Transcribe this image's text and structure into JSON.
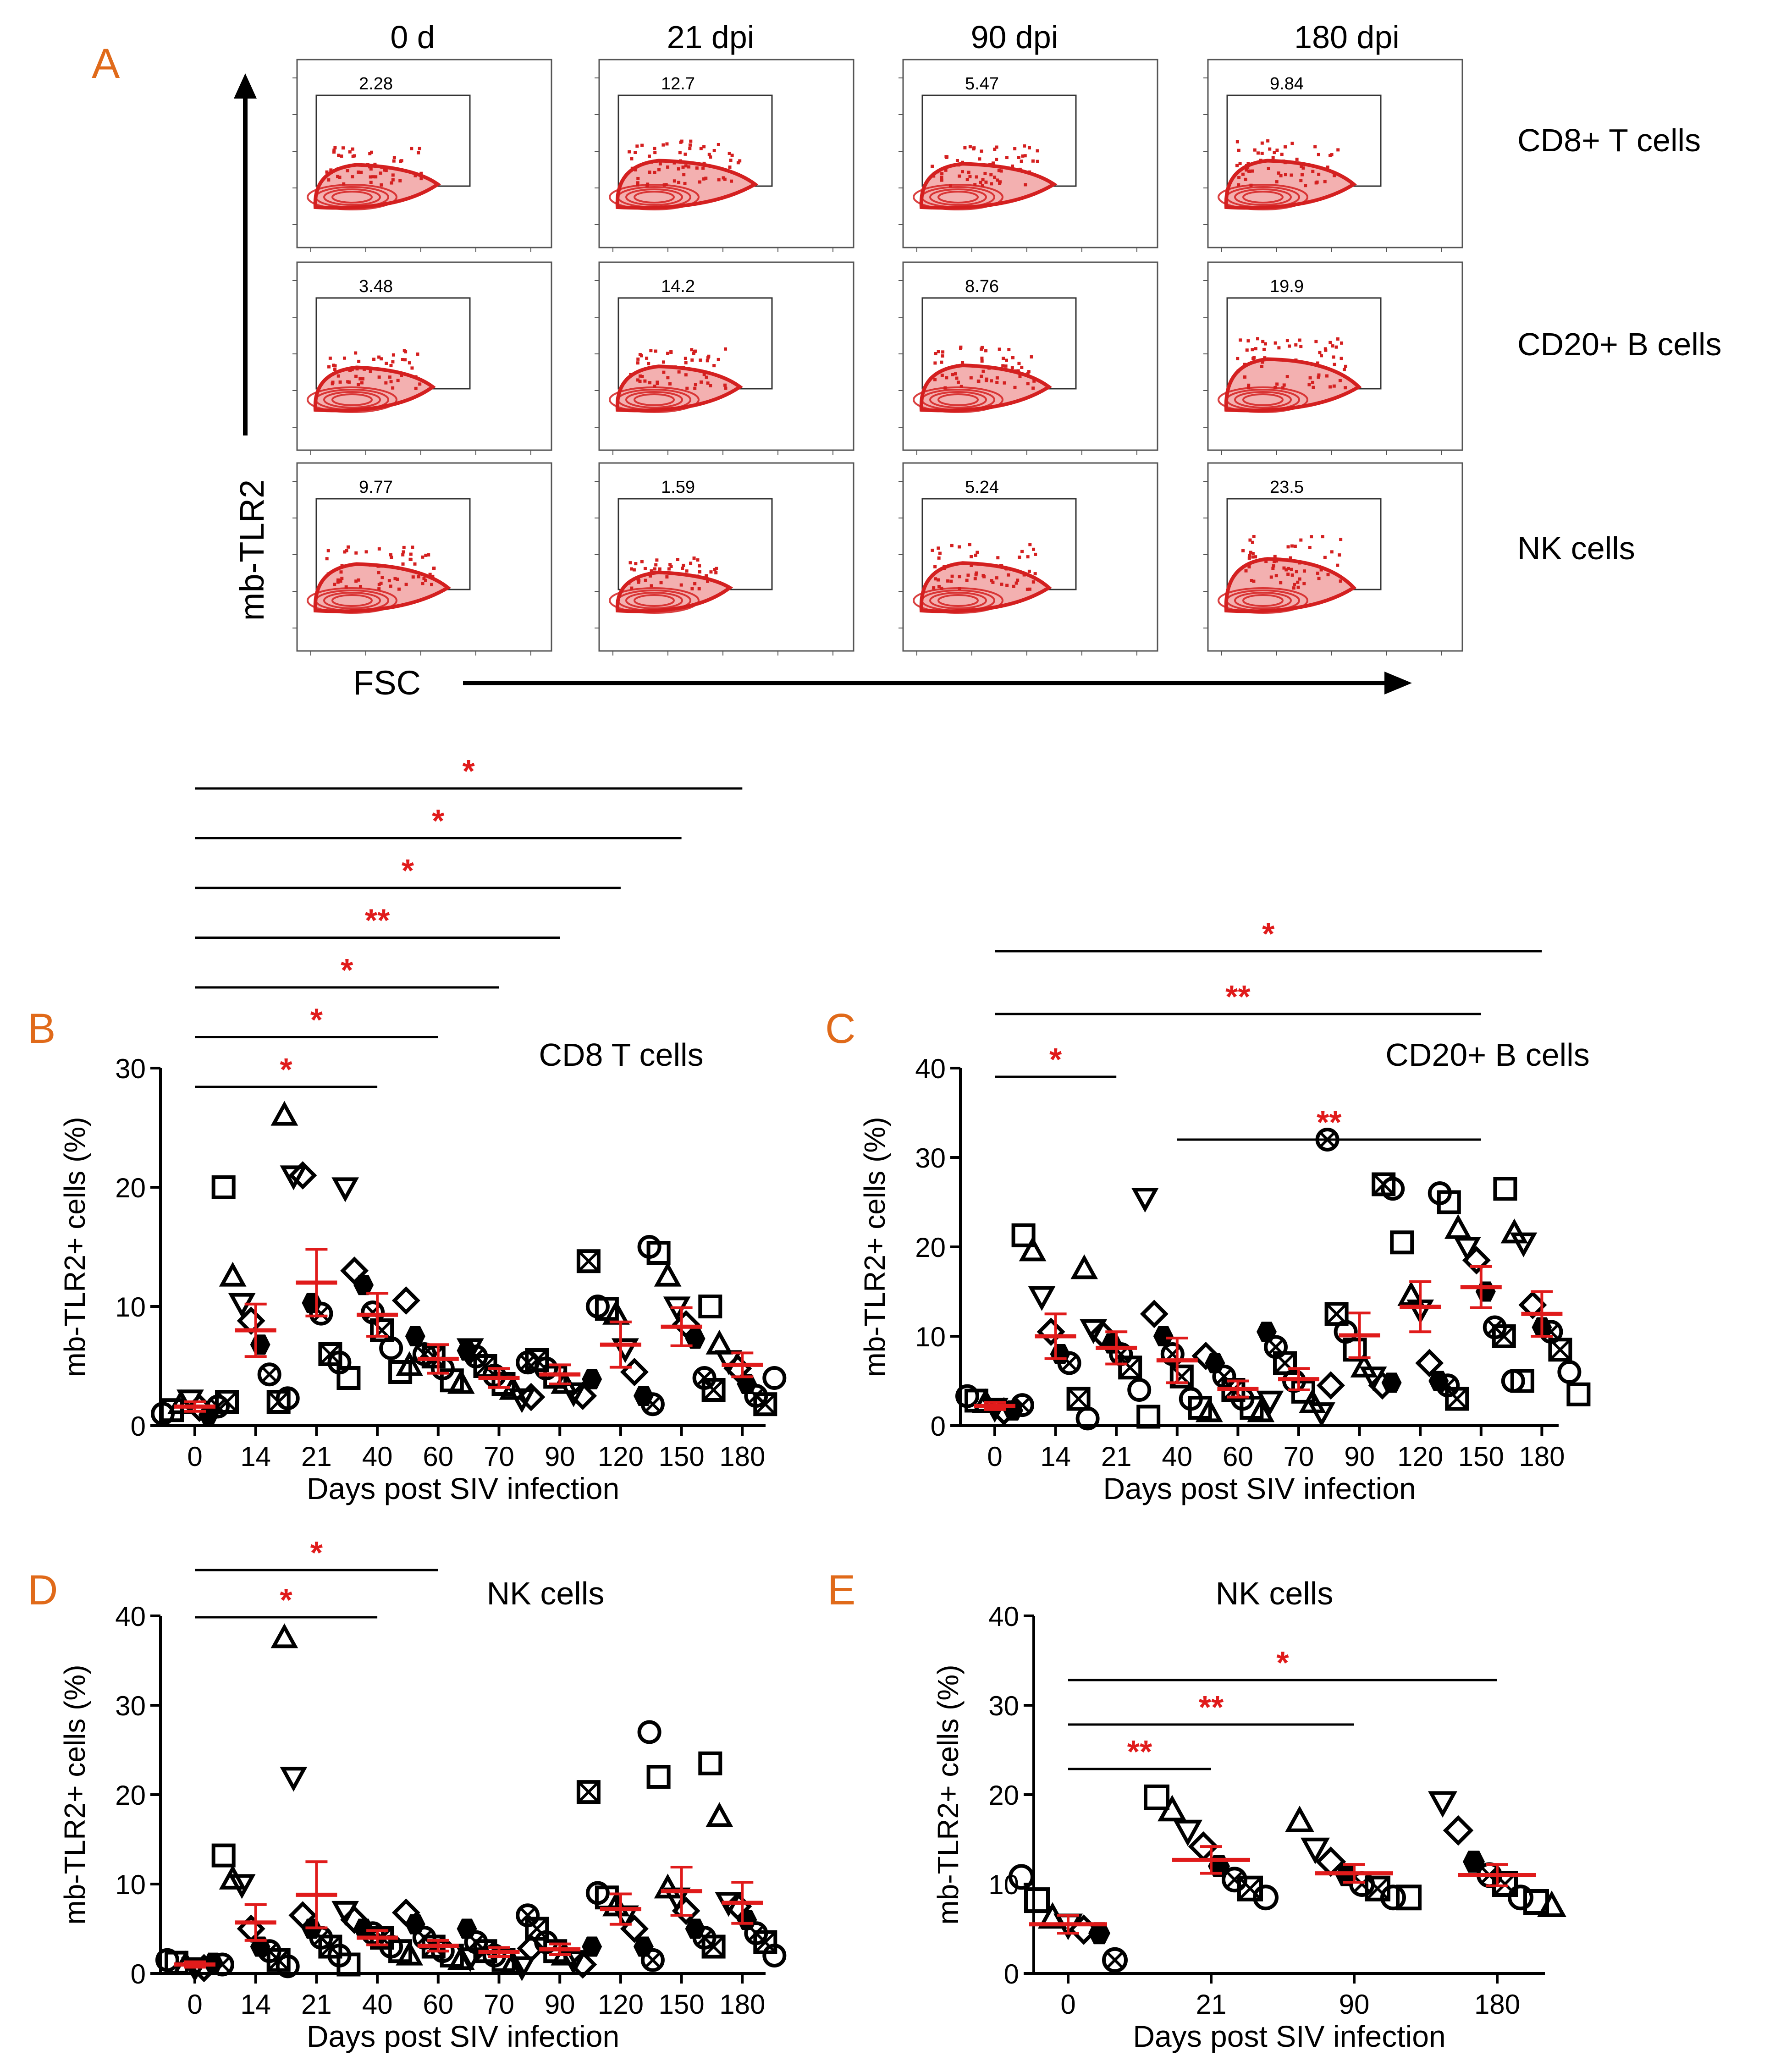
{
  "figure": {
    "colors": {
      "accent": "#e01b1b",
      "panel_letter": "#e06a1a",
      "ink": "#000000",
      "flow": "#d42020"
    }
  },
  "panel_a": {
    "letter": "A",
    "y_axis_label": "mb-TLR2",
    "x_axis_label": "FSC",
    "columns": [
      "0 d",
      "21 dpi",
      "90 dpi",
      "180 dpi"
    ],
    "rows": [
      "CD8+ T cells",
      "CD20+ B cells",
      "NK cells"
    ],
    "gate_values": [
      [
        "2.28",
        "12.7",
        "5.47",
        "9.84"
      ],
      [
        "3.48",
        "14.2",
        "8.76",
        "19.9"
      ],
      [
        "9.77",
        "1.59",
        "5.24",
        "23.5"
      ]
    ]
  },
  "chart_data": [
    {
      "panel": "B",
      "type": "scatter",
      "title": "CD8 T cells",
      "xlabel": "Days post SIV infection",
      "ylabel": "mb-TLR2+ cells (%)",
      "categories": [
        "0",
        "14",
        "21",
        "40",
        "60",
        "70",
        "90",
        "120",
        "150",
        "180"
      ],
      "ylim": [
        0,
        30
      ],
      "yticks": [
        "0",
        "10",
        "20",
        "30"
      ],
      "means": [
        1.6,
        8.0,
        12.0,
        9.3,
        5.6,
        4.0,
        4.3,
        6.8,
        8.3,
        5.1
      ],
      "sem": [
        0.4,
        2.2,
        2.8,
        1.8,
        1.2,
        0.8,
        0.8,
        1.9,
        1.6,
        1.0
      ],
      "points": [
        [
          1.0,
          1.3,
          1.8,
          2.2,
          1.5,
          0.9,
          1.6,
          2.0
        ],
        [
          20.0,
          12.5,
          10.3,
          8.8,
          6.8,
          4.3,
          2.0,
          2.3
        ],
        [
          26.0,
          21.0,
          21.0,
          10.3,
          9.4,
          6.0,
          5.3,
          4.0
        ],
        [
          20.0,
          13.0,
          11.8,
          9.5,
          8.0,
          6.5,
          4.5,
          5.0
        ],
        [
          10.5,
          7.5,
          6.0,
          5.8,
          4.8,
          3.8,
          3.5,
          6.5
        ],
        [
          6.3,
          5.8,
          5.0,
          4.2,
          3.5,
          3.0,
          2.3,
          2.4
        ],
        [
          5.3,
          5.5,
          4.8,
          4.1,
          3.5,
          2.8,
          2.5,
          3.9
        ],
        [
          13.8,
          10.0,
          9.8,
          9.3,
          6.5,
          4.5,
          2.5,
          1.8
        ],
        [
          15.0,
          14.5,
          12.5,
          10.0,
          8.5,
          7.3,
          4.0,
          3.0
        ],
        [
          10.0,
          6.8,
          5.5,
          4.8,
          3.5,
          2.5,
          1.8,
          4.0
        ]
      ],
      "significance": [
        {
          "from": "0",
          "to": "180",
          "label": "*"
        },
        {
          "from": "0",
          "to": "150",
          "label": "*"
        },
        {
          "from": "0",
          "to": "120",
          "label": "*"
        },
        {
          "from": "0",
          "to": "90",
          "label": "**"
        },
        {
          "from": "0",
          "to": "70",
          "label": "*"
        },
        {
          "from": "0",
          "to": "60",
          "label": "*"
        },
        {
          "from": "0",
          "to": "40",
          "label": "*"
        }
      ]
    },
    {
      "panel": "C",
      "type": "scatter",
      "title": "CD20+ B cells",
      "xlabel": "Days post SIV infection",
      "ylabel": "mb-TLR2+ cells (%)",
      "categories": [
        "0",
        "14",
        "21",
        "40",
        "60",
        "70",
        "90",
        "120",
        "150",
        "180"
      ],
      "ylim": [
        0,
        40
      ],
      "yticks": [
        "0",
        "10",
        "20",
        "30",
        "40"
      ],
      "means": [
        2.2,
        10.0,
        8.7,
        7.3,
        4.1,
        5.2,
        10.1,
        13.3,
        15.5,
        12.5
      ],
      "sem": [
        0.4,
        2.5,
        1.8,
        2.5,
        0.9,
        1.2,
        2.5,
        2.8,
        2.3,
        2.5
      ],
      "points": [
        [
          3.3,
          2.8,
          2.5,
          2.0,
          1.6,
          1.7,
          2.3
        ],
        [
          21.3,
          19.5,
          14.5,
          10.5,
          8.0,
          7.0,
          3.0,
          0.8
        ],
        [
          17.5,
          10.8,
          10.2,
          9.2,
          8.0,
          6.5,
          4.0,
          1.0
        ],
        [
          25.5,
          12.5,
          10.0,
          8.0,
          5.5,
          3.0,
          2.0,
          1.5
        ],
        [
          7.8,
          7.0,
          5.5,
          4.0,
          3.0,
          2.0,
          1.5,
          2.8
        ],
        [
          10.5,
          8.8,
          7.0,
          5.0,
          3.8,
          2.5,
          1.5,
          4.5
        ],
        [
          32.0,
          12.5,
          10.5,
          8.5,
          6.5,
          5.5,
          4.5,
          4.8
        ],
        [
          27.0,
          26.5,
          20.5,
          14.5,
          13.0,
          7.0,
          5.0,
          4.5,
          3.0
        ],
        [
          26.0,
          25.0,
          22.0,
          20.0,
          18.5,
          15.0,
          11.0,
          10.0,
          5.0,
          5.0
        ],
        [
          26.5,
          21.5,
          20.5,
          13.5,
          11.0,
          10.5,
          8.5,
          6.0,
          3.5
        ]
      ],
      "significance": [
        {
          "from": "0",
          "to": "180",
          "label": "*"
        },
        {
          "from": "0",
          "to": "150",
          "label": "**"
        },
        {
          "from": "0",
          "to": "21",
          "label": "*"
        },
        {
          "from": "40",
          "to": "150",
          "label": "**"
        }
      ]
    },
    {
      "panel": "D",
      "type": "scatter",
      "title": "NK cells",
      "xlabel": "Days post SIV infection",
      "ylabel": "mb-TLR2+ cells (%)",
      "categories": [
        "0",
        "14",
        "21",
        "40",
        "60",
        "70",
        "90",
        "120",
        "150",
        "180"
      ],
      "ylim": [
        0,
        40
      ],
      "yticks": [
        "0",
        "10",
        "20",
        "30",
        "40"
      ],
      "means": [
        1.0,
        5.7,
        8.8,
        4.0,
        3.1,
        2.4,
        2.7,
        7.2,
        9.2,
        7.9
      ],
      "sem": [
        0.3,
        2.0,
        3.7,
        0.8,
        0.6,
        0.5,
        0.6,
        1.7,
        2.7,
        2.3
      ],
      "points": [
        [
          1.5,
          1.2,
          0.9,
          0.7,
          0.6,
          1.2,
          1.0
        ],
        [
          13.2,
          10.5,
          10.0,
          5.0,
          3.0,
          2.5,
          1.5,
          0.8
        ],
        [
          37.5,
          22.0,
          6.5,
          5.0,
          4.0,
          3.0,
          2.0,
          1.0
        ],
        [
          7.0,
          6.0,
          5.0,
          4.5,
          4.0,
          3.0,
          2.5,
          2.0
        ],
        [
          6.8,
          5.5,
          4.0,
          3.0,
          2.5,
          2.0,
          1.5,
          1.8
        ],
        [
          5.0,
          3.5,
          2.5,
          2.0,
          1.5,
          1.0,
          0.8,
          2.8
        ],
        [
          6.5,
          5.0,
          3.5,
          2.5,
          2.0,
          1.5,
          1.0,
          3.0
        ],
        [
          20.3,
          9.0,
          8.5,
          7.5,
          6.5,
          5.0,
          3.0,
          1.5
        ],
        [
          27.0,
          22.0,
          9.5,
          8.5,
          7.0,
          5.0,
          4.0,
          3.0
        ],
        [
          23.5,
          17.5,
          8.0,
          7.5,
          6.0,
          4.5,
          3.5,
          2.0
        ]
      ],
      "significance": [
        {
          "from": "0",
          "to": "60",
          "label": "*"
        },
        {
          "from": "0",
          "to": "40",
          "label": "*"
        }
      ]
    },
    {
      "panel": "E",
      "type": "scatter",
      "title": "NK cells",
      "xlabel": "Days post SIV infection",
      "ylabel": "mb-TLR2+ cells (%)",
      "categories": [
        "0",
        "21",
        "90",
        "180"
      ],
      "ylim": [
        0,
        40
      ],
      "yticks": [
        "0",
        "10",
        "20",
        "30",
        "40"
      ],
      "means": [
        5.5,
        12.7,
        11.2,
        11.0
      ],
      "sem": [
        1.0,
        1.5,
        1.0,
        1.2
      ],
      "points": [
        [
          10.8,
          8.2,
          6.2,
          5.5,
          4.9,
          4.5,
          1.5
        ],
        [
          19.7,
          18.2,
          16.0,
          14.2,
          12.0,
          10.5,
          9.5,
          8.5
        ],
        [
          17.0,
          14.0,
          12.5,
          11.0,
          10.0,
          9.5,
          8.5,
          8.5
        ],
        [
          19.2,
          16.0,
          12.5,
          11.0,
          10.0,
          8.5,
          8.0,
          7.5
        ]
      ],
      "significance": [
        {
          "from": "0",
          "to": "180",
          "label": "*"
        },
        {
          "from": "0",
          "to": "90",
          "label": "**"
        },
        {
          "from": "0",
          "to": "21",
          "label": "**"
        }
      ]
    }
  ]
}
